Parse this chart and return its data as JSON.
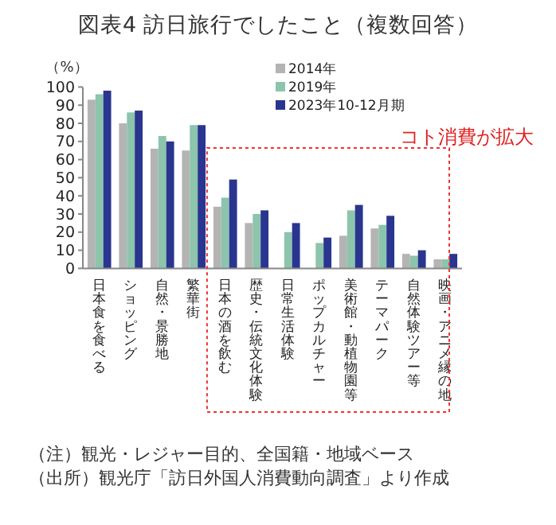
{
  "chart_data": {
    "type": "bar",
    "title": "図表4 訪日旅行でしたこと（複数回答）",
    "ylabel": "（%）",
    "categories": [
      "日本食を食べる",
      "ショッピング",
      "自然・景勝地",
      "繁華街",
      "日本の酒を飲む",
      "歴史・伝統文化体験",
      "日常生活体験",
      "ポップカルチャー",
      "美術館・動植物園等",
      "テーマパーク",
      "自然体験ツアー等",
      "映画・アニメ縁の地"
    ],
    "series": [
      {
        "name": "2014年",
        "color": "#b4b4b4",
        "values": [
          93,
          80,
          66,
          65,
          34,
          25,
          null,
          null,
          18,
          22,
          8,
          5
        ]
      },
      {
        "name": "2019年",
        "color": "#8cc4ac",
        "values": [
          96,
          86,
          73,
          79,
          39,
          30,
          20,
          14,
          32,
          24,
          7,
          5
        ]
      },
      {
        "name": "2023年10-12月期",
        "color": "#2a3590",
        "values": [
          98,
          87,
          70,
          79,
          49,
          32,
          25,
          17,
          35,
          29,
          10,
          8
        ]
      }
    ],
    "ylim": [
      0,
      100
    ],
    "yticks": [
      0,
      10,
      20,
      30,
      40,
      50,
      60,
      70,
      80,
      90,
      100
    ],
    "legend": "top right",
    "annotations": [
      "コト消費が拡大",
      "（注）観光・レジャー目的、全国籍・地域ベース",
      "（出所）観光庁「訪日外国人消費動向調査」より作成"
    ]
  }
}
